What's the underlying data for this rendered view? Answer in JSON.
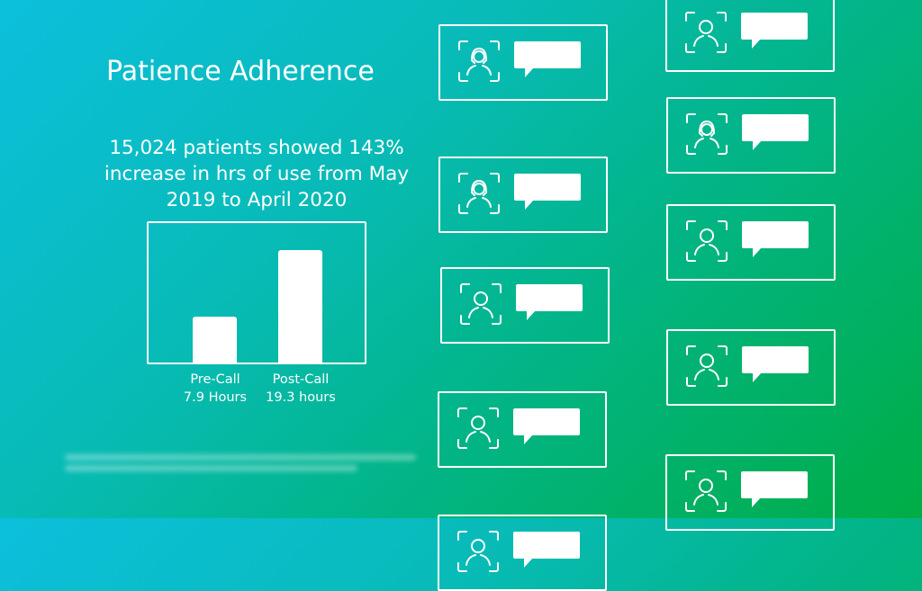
{
  "title": "Patience Adherence",
  "subtitle": "15,024 patients showed 143% increase in hrs of use from May 2019 to April 2020",
  "colors": {
    "gradient_start": "#0cbfdc",
    "gradient_end": "#00ad45",
    "foreground": "#ffffff"
  },
  "chart_data": {
    "type": "bar",
    "categories": [
      "Pre-Call",
      "Post-Call"
    ],
    "values": [
      7.9,
      19.3
    ],
    "value_labels": [
      "7.9 Hours",
      "19.3 hours"
    ],
    "title": "",
    "xlabel": "",
    "ylabel": "",
    "grid": false
  },
  "cards": [
    {
      "icon": "female-face-scan-icon"
    },
    {
      "icon": "female-face-scan-icon"
    },
    {
      "icon": "male-face-scan-icon"
    },
    {
      "icon": "male-face-scan-icon"
    },
    {
      "icon": "male-face-scan-icon"
    },
    {
      "icon": "male-face-scan-icon"
    },
    {
      "icon": "female-face-scan-icon"
    },
    {
      "icon": "male-face-scan-icon"
    },
    {
      "icon": "male-face-scan-icon"
    },
    {
      "icon": "male-face-scan-icon"
    }
  ]
}
